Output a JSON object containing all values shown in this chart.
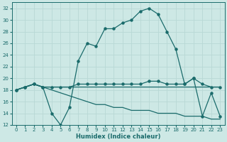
{
  "xlabel": "Humidex (Indice chaleur)",
  "bg_color": "#cde8e5",
  "line_color": "#1a6b6b",
  "grid_color": "#b8d8d5",
  "xlim": [
    -0.5,
    23.5
  ],
  "ylim": [
    12,
    33
  ],
  "yticks": [
    12,
    14,
    16,
    18,
    20,
    22,
    24,
    26,
    28,
    30,
    32
  ],
  "xticks": [
    0,
    1,
    2,
    3,
    4,
    5,
    6,
    7,
    8,
    9,
    10,
    11,
    12,
    13,
    14,
    15,
    16,
    17,
    18,
    19,
    20,
    21,
    22,
    23
  ],
  "line_main_x": [
    0,
    1,
    2,
    3,
    4,
    5,
    6,
    7,
    8,
    9,
    10,
    11,
    12,
    13,
    14,
    15,
    16,
    17,
    18,
    19,
    20,
    21,
    22,
    23
  ],
  "line_main_y": [
    18.0,
    18.5,
    19.0,
    18.5,
    14.0,
    12.0,
    15.0,
    23.0,
    26.0,
    25.5,
    28.5,
    28.5,
    29.5,
    30.0,
    31.5,
    32.0,
    31.0,
    28.0,
    25.0,
    19.0,
    20.0,
    13.5,
    17.5,
    13.5
  ],
  "line_flat1_x": [
    0,
    1,
    2,
    3,
    4,
    5,
    6,
    7,
    8,
    9,
    10,
    11,
    12,
    13,
    14,
    15,
    16,
    17,
    18,
    19,
    20,
    21,
    22,
    23
  ],
  "line_flat1_y": [
    18.0,
    18.5,
    19.0,
    18.5,
    18.5,
    18.5,
    18.5,
    19.0,
    19.0,
    19.0,
    19.0,
    19.0,
    19.0,
    19.0,
    19.0,
    19.5,
    19.5,
    19.0,
    19.0,
    19.0,
    20.0,
    19.0,
    18.5,
    18.5
  ],
  "line_flat2_x": [
    0,
    1,
    2,
    3,
    4,
    5,
    6,
    7,
    8,
    9,
    10,
    11,
    12,
    13,
    14,
    15,
    16,
    17,
    18,
    19,
    20,
    21,
    22,
    23
  ],
  "line_flat2_y": [
    18.0,
    18.5,
    19.0,
    18.5,
    18.5,
    18.5,
    18.5,
    18.5,
    18.5,
    18.5,
    18.5,
    18.5,
    18.5,
    18.5,
    18.5,
    18.5,
    18.5,
    18.5,
    18.5,
    18.5,
    18.5,
    18.5,
    18.5,
    18.5
  ],
  "line_desc_x": [
    0,
    1,
    2,
    3,
    4,
    5,
    6,
    7,
    8,
    9,
    10,
    11,
    12,
    13,
    14,
    15,
    16,
    17,
    18,
    19,
    20,
    21,
    22,
    23
  ],
  "line_desc_y": [
    18.0,
    18.5,
    19.0,
    18.5,
    18.0,
    17.5,
    17.0,
    16.5,
    16.0,
    15.5,
    15.5,
    15.0,
    15.0,
    14.5,
    14.5,
    14.5,
    14.0,
    14.0,
    14.0,
    13.5,
    13.5,
    13.5,
    13.0,
    13.0
  ]
}
